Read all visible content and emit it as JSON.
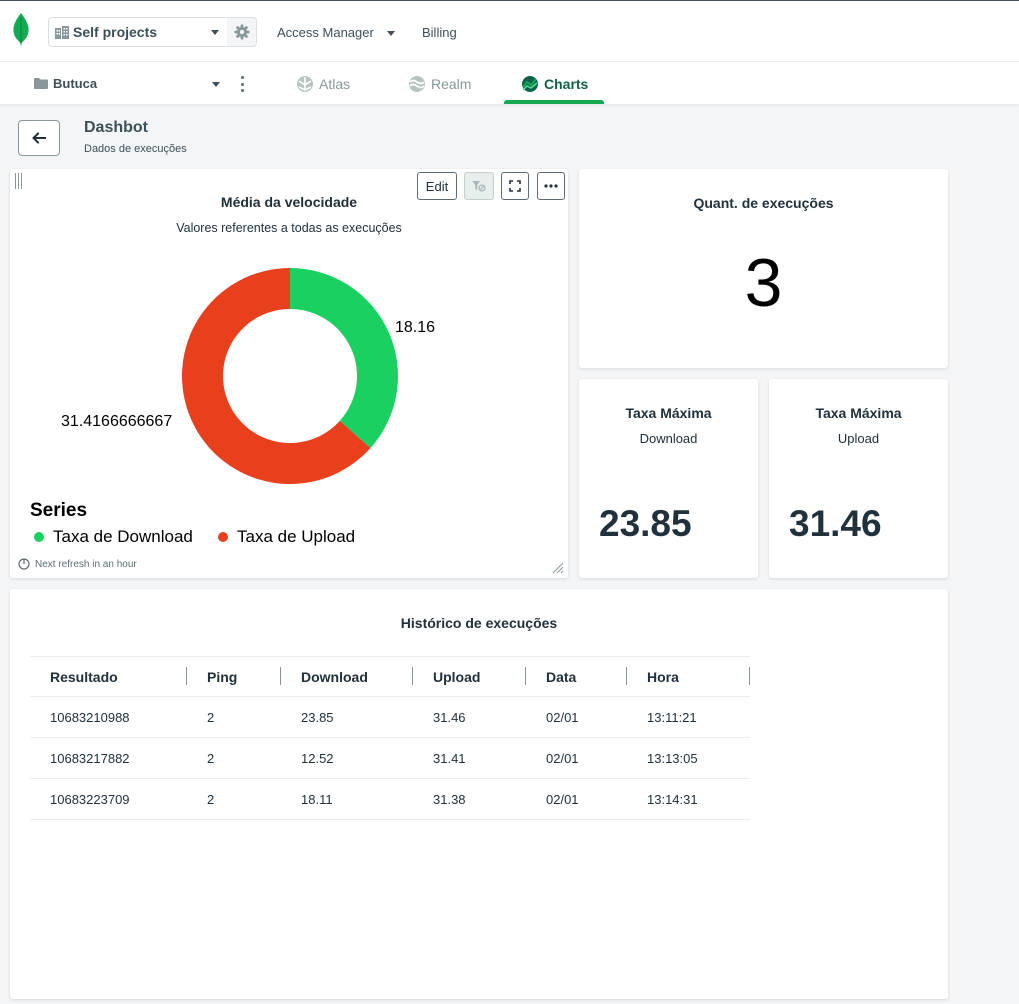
{
  "topbar": {
    "project": "Self projects",
    "access_manager": "Access Manager",
    "billing": "Billing"
  },
  "navbar": {
    "organization": "Butuca",
    "tabs": [
      {
        "label": "Atlas",
        "active": false
      },
      {
        "label": "Realm",
        "active": false
      },
      {
        "label": "Charts",
        "active": true
      }
    ]
  },
  "dashboard": {
    "title": "Dashbot",
    "subtitle": "Dados de execuções"
  },
  "donut_card": {
    "edit_label": "Edit",
    "refresh_text": "Next refresh in an hour",
    "legend_title": "Series"
  },
  "chart_data": {
    "type": "pie",
    "donut": true,
    "title": "Média da velocidade",
    "subtitle": "Valores referentes a todas as execuções",
    "legend_title": "Series",
    "legend_position": "bottom-left",
    "series": [
      {
        "name": "Taxa de Download",
        "value": 18.16,
        "label": "18.16",
        "color": "#19d061"
      },
      {
        "name": "Taxa de Upload",
        "value": 31.4166666667,
        "label": "31.4166666667",
        "color": "#e8401d"
      }
    ]
  },
  "count_card": {
    "title": "Quant. de execuções",
    "value": "3"
  },
  "max_download_card": {
    "title": "Taxa Máxima",
    "subtitle": "Download",
    "value": "23.85"
  },
  "max_upload_card": {
    "title": "Taxa Máxima",
    "subtitle": "Upload",
    "value": "31.46"
  },
  "history_table": {
    "title": "Histórico de execuções",
    "columns": [
      "Resultado",
      "Ping",
      "Download",
      "Upload",
      "Data",
      "Hora"
    ],
    "rows": [
      [
        "10683210988",
        "2",
        "23.85",
        "31.46",
        "02/01",
        "13:11:21"
      ],
      [
        "10683217882",
        "2",
        "12.52",
        "31.41",
        "02/01",
        "13:13:05"
      ],
      [
        "10683223709",
        "2",
        "18.11",
        "31.38",
        "02/01",
        "13:14:31"
      ]
    ]
  },
  "icons": {
    "logo": "mongodb-leaf-icon",
    "project": "building-icon",
    "settings": "gear-icon",
    "organization": "folder-icon",
    "back": "arrow-left-icon",
    "filter": "filter-off-icon",
    "fullscreen": "fullscreen-icon",
    "more": "ellipsis-icon",
    "refresh": "clock-icon"
  },
  "colors": {
    "accent": "#13aa52",
    "download": "#19d061",
    "upload": "#e8401d"
  }
}
